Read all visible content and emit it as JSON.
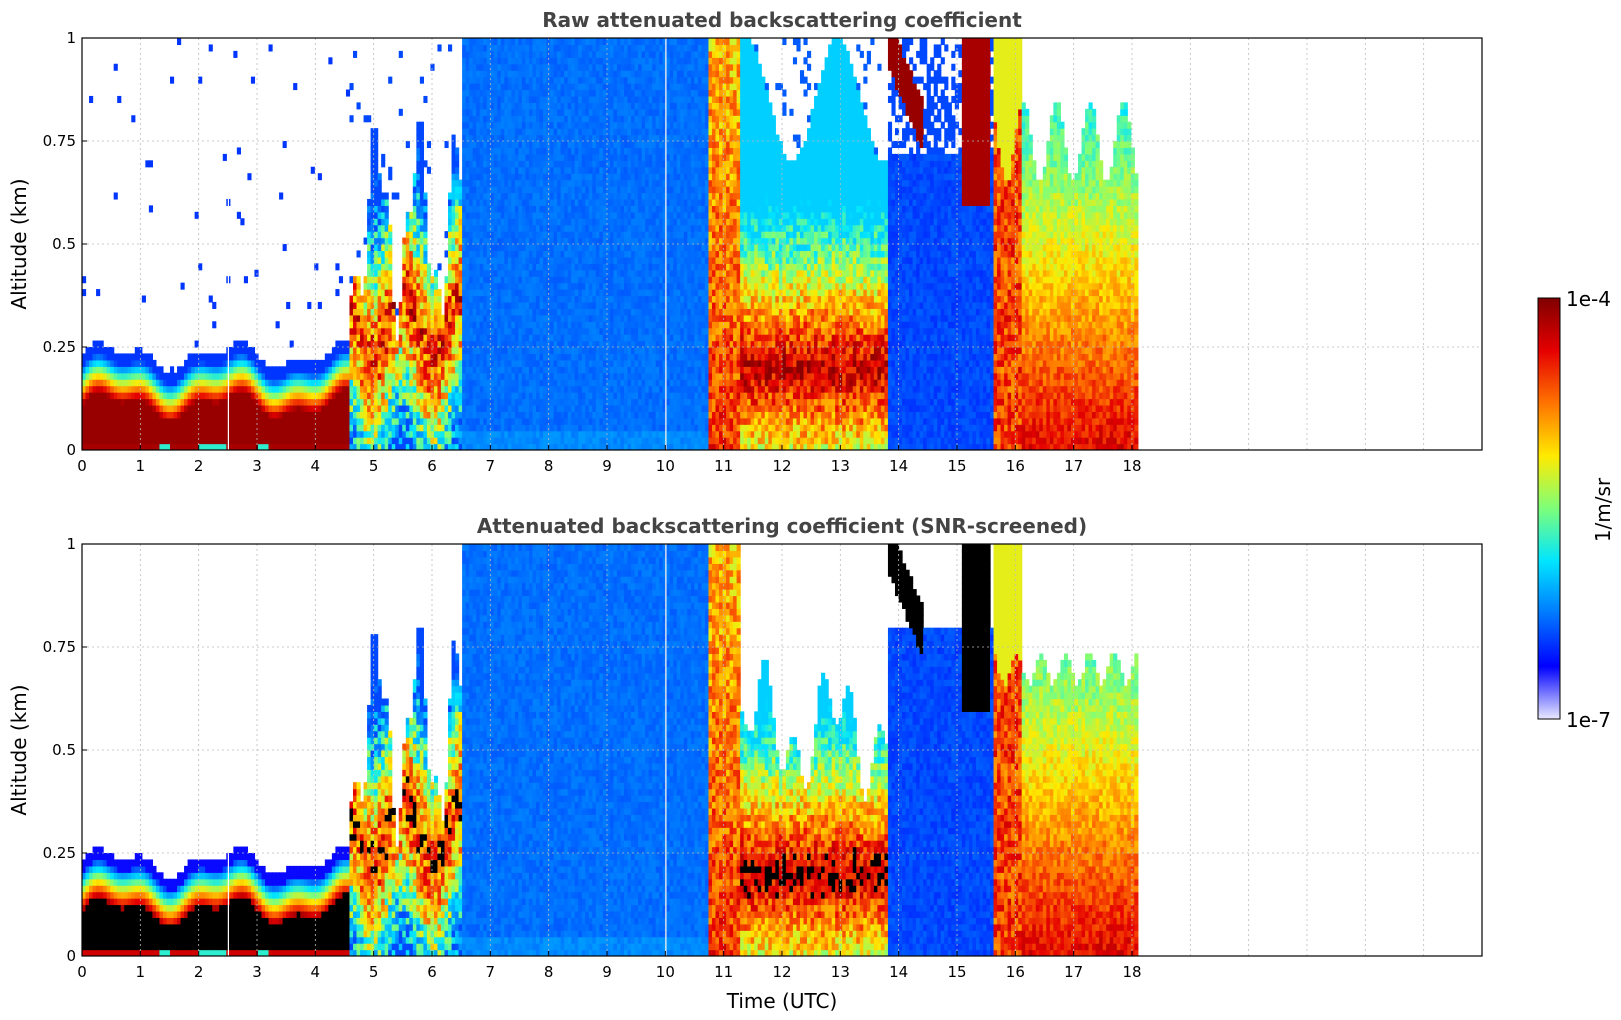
{
  "chart_data": [
    {
      "type": "heatmap",
      "title": "Raw attenuated backscattering coefficient",
      "xlabel": "",
      "ylabel": "Altitude (km)",
      "xlim": [
        0,
        24
      ],
      "ylim": [
        0,
        1
      ],
      "xticks": [
        "0",
        "1",
        "2",
        "3",
        "4",
        "5",
        "6",
        "7",
        "8",
        "9",
        "10",
        "11",
        "12",
        "13",
        "14",
        "15",
        "16",
        "17",
        "18"
      ],
      "yticks": [
        "0",
        "0.25",
        "0.5",
        "0.75",
        "1"
      ],
      "grid": true,
      "data_end_hour": 18.1,
      "segments": [
        {
          "start": 0.0,
          "end": 4.6,
          "description": "dense low layer 0-0.25 km with sparse noise aloft"
        },
        {
          "start": 4.6,
          "end": 6.5,
          "description": "broken cloud plumes up to 0.8 km"
        },
        {
          "start": 6.5,
          "end": 10.75,
          "description": "weak uniform signal through full column"
        },
        {
          "start": 10.75,
          "end": 13.8,
          "description": "strong signal, core around 0.15-0.3 km"
        },
        {
          "start": 13.8,
          "end": 15.65,
          "description": "weak signal with descending high streak"
        },
        {
          "start": 15.65,
          "end": 18.1,
          "description": "strong signal up to 0.75 km"
        }
      ]
    },
    {
      "type": "heatmap",
      "title": "Attenuated backscattering coefficient (SNR-screened)",
      "xlabel": "Time (UTC)",
      "ylabel": "Altitude (km)",
      "xlim": [
        0,
        24
      ],
      "ylim": [
        0,
        1
      ],
      "xticks": [
        "0",
        "1",
        "2",
        "3",
        "4",
        "5",
        "6",
        "7",
        "8",
        "9",
        "10",
        "11",
        "12",
        "13",
        "14",
        "15",
        "16",
        "17",
        "18"
      ],
      "yticks": [
        "0",
        "0.25",
        "0.5",
        "0.75",
        "1"
      ],
      "grid": true,
      "data_end_hour": 18.1
    }
  ],
  "colorbar": {
    "label": "1/m/sr",
    "max_label": "1e-4",
    "min_label": "1e-7",
    "colormap": [
      "#e9e9ff",
      "#0000ff",
      "#0078ff",
      "#00e5ff",
      "#7dff7a",
      "#ffea00",
      "#ff7400",
      "#e50000",
      "#800000"
    ]
  }
}
